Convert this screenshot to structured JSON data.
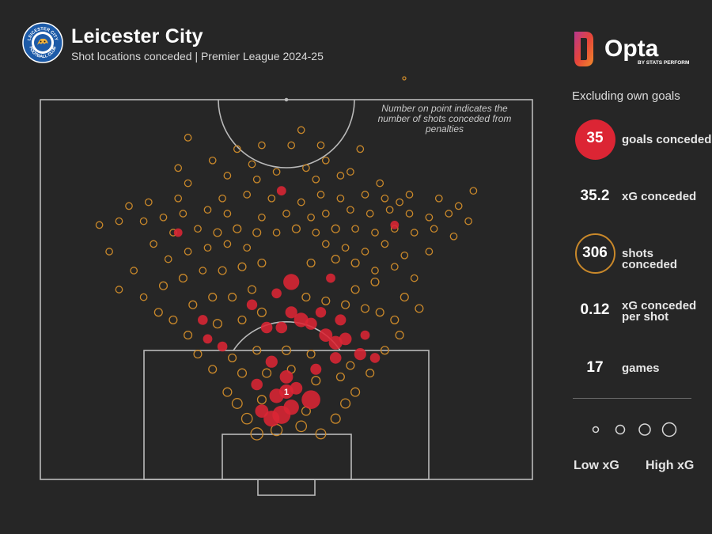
{
  "header": {
    "title": "Leicester City",
    "subtitle": "Shot locations conceded | Premier League 2024-25"
  },
  "brand": {
    "name": "Opta",
    "tagline": "BY STATS PERFORM"
  },
  "crest": {
    "top_text": "LEICESTER CITY",
    "bottom_text": "FOOTBALL CLUB"
  },
  "note": "Number on point indicates the number of shots conceded from penalties",
  "panel": {
    "note": "Excluding own goals",
    "stats": [
      {
        "value": "35",
        "label": "goals conceded"
      },
      {
        "value": "35.2",
        "label": "xG conceded"
      },
      {
        "value": "306",
        "label": "shots conceded"
      },
      {
        "value": "0.12",
        "label_line1": "xG conceded",
        "label_line2": "per shot"
      },
      {
        "value": "17",
        "label": "games"
      }
    ],
    "legend": {
      "low": "Low xG",
      "high": "High xG"
    }
  },
  "colors": {
    "background": "#262626",
    "goal": "#dc2534",
    "shot": "#c9882a",
    "pitch_lines": "#b9b9b9"
  },
  "chart_data": {
    "type": "scatter",
    "x_axis": "pitch width (0-100, left to right)",
    "y_axis": "distance from goal line (0-100)",
    "penalty_label": "1",
    "goals": [
      [
        49,
        17,
        0.28
      ],
      [
        47,
        16,
        0.2
      ],
      [
        51,
        19,
        0.18
      ],
      [
        55,
        21,
        0.3
      ],
      [
        45,
        18,
        0.12
      ],
      [
        48,
        22,
        0.15
      ],
      [
        52,
        24,
        0.1
      ],
      [
        44,
        25,
        0.08
      ],
      [
        50,
        27,
        0.12
      ],
      [
        47,
        31,
        0.09
      ],
      [
        56,
        29,
        0.07
      ],
      [
        60,
        36,
        0.13
      ],
      [
        62,
        37,
        0.1
      ],
      [
        58,
        38,
        0.12
      ],
      [
        55,
        41,
        0.09
      ],
      [
        49,
        40,
        0.08
      ],
      [
        53,
        42,
        0.15
      ],
      [
        51,
        44,
        0.09
      ],
      [
        57,
        44,
        0.06
      ],
      [
        61,
        42,
        0.07
      ],
      [
        65,
        33,
        0.09
      ],
      [
        68,
        32,
        0.05
      ],
      [
        60,
        32,
        0.08
      ],
      [
        46,
        40,
        0.08
      ],
      [
        43,
        46,
        0.06
      ],
      [
        48,
        49,
        0.05
      ],
      [
        51,
        52,
        0.2
      ],
      [
        59,
        53,
        0.04
      ],
      [
        37,
        35,
        0.05
      ],
      [
        34,
        37,
        0.04
      ],
      [
        33,
        42,
        0.05
      ],
      [
        66,
        38,
        0.04
      ],
      [
        28,
        65,
        0.03
      ],
      [
        72,
        67,
        0.03
      ],
      [
        49,
        76,
        0.04
      ]
    ],
    "shots": [
      [
        44,
        12,
        0.09
      ],
      [
        48,
        13,
        0.07
      ],
      [
        53,
        14,
        0.06
      ],
      [
        57,
        12,
        0.05
      ],
      [
        42,
        16,
        0.06
      ],
      [
        60,
        16,
        0.04
      ],
      [
        40,
        20,
        0.05
      ],
      [
        62,
        20,
        0.04
      ],
      [
        38,
        23,
        0.03
      ],
      [
        64,
        23,
        0.03
      ],
      [
        45,
        21,
        0.03
      ],
      [
        54,
        18,
        0.03
      ],
      [
        41,
        28,
        0.03
      ],
      [
        46,
        28,
        0.03
      ],
      [
        51,
        29,
        0.02
      ],
      [
        56,
        26,
        0.03
      ],
      [
        61,
        27,
        0.02
      ],
      [
        39,
        32,
        0.02
      ],
      [
        44,
        34,
        0.02
      ],
      [
        50,
        34,
        0.03
      ],
      [
        55,
        33,
        0.02
      ],
      [
        63,
        30,
        0.02
      ],
      [
        67,
        28,
        0.02
      ],
      [
        35,
        29,
        0.02
      ],
      [
        32,
        33,
        0.02
      ],
      [
        70,
        34,
        0.02
      ],
      [
        73,
        38,
        0.02
      ],
      [
        30,
        38,
        0.02
      ],
      [
        36,
        41,
        0.03
      ],
      [
        41,
        42,
        0.02
      ],
      [
        45,
        44,
        0.03
      ],
      [
        58,
        47,
        0.02
      ],
      [
        62,
        46,
        0.02
      ],
      [
        66,
        45,
        0.02
      ],
      [
        69,
        44,
        0.02
      ],
      [
        72,
        42,
        0.02
      ],
      [
        27,
        42,
        0.02
      ],
      [
        24,
        44,
        0.02
      ],
      [
        31,
        46,
        0.02
      ],
      [
        35,
        48,
        0.02
      ],
      [
        39,
        48,
        0.02
      ],
      [
        43,
        50,
        0.02
      ],
      [
        54,
        48,
        0.02
      ],
      [
        64,
        50,
        0.02
      ],
      [
        68,
        52,
        0.02
      ],
      [
        74,
        48,
        0.02
      ],
      [
        77,
        45,
        0.02
      ],
      [
        21,
        48,
        0.01
      ],
      [
        25,
        51,
        0.02
      ],
      [
        29,
        53,
        0.02
      ],
      [
        33,
        55,
        0.01
      ],
      [
        37,
        55,
        0.02
      ],
      [
        41,
        56,
        0.02
      ],
      [
        45,
        57,
        0.02
      ],
      [
        55,
        57,
        0.02
      ],
      [
        60,
        58,
        0.02
      ],
      [
        64,
        57,
        0.02
      ],
      [
        68,
        55,
        0.01
      ],
      [
        72,
        56,
        0.01
      ],
      [
        76,
        53,
        0.01
      ],
      [
        26,
        58,
        0.01
      ],
      [
        30,
        60,
        0.01
      ],
      [
        34,
        61,
        0.01
      ],
      [
        38,
        62,
        0.01
      ],
      [
        42,
        61,
        0.01
      ],
      [
        58,
        62,
        0.01
      ],
      [
        62,
        61,
        0.01
      ],
      [
        66,
        60,
        0.01
      ],
      [
        70,
        62,
        0.01
      ],
      [
        74,
        59,
        0.01
      ],
      [
        79,
        60,
        0.01
      ],
      [
        16,
        50,
        0.01
      ],
      [
        19,
        55,
        0.01
      ],
      [
        14,
        60,
        0.01
      ],
      [
        23,
        62,
        0.01
      ],
      [
        27,
        65,
        0.01
      ],
      [
        32,
        66,
        0.01
      ],
      [
        36,
        65,
        0.02
      ],
      [
        40,
        66,
        0.02
      ],
      [
        44,
        65,
        0.02
      ],
      [
        48,
        65,
        0.01
      ],
      [
        52,
        66,
        0.02
      ],
      [
        56,
        65,
        0.01
      ],
      [
        60,
        66,
        0.02
      ],
      [
        64,
        66,
        0.01
      ],
      [
        68,
        65,
        0.01
      ],
      [
        72,
        66,
        0.01
      ],
      [
        76,
        65,
        0.01
      ],
      [
        80,
        66,
        0.01
      ],
      [
        84,
        64,
        0.01
      ],
      [
        12,
        67,
        0.01
      ],
      [
        16,
        68,
        0.01
      ],
      [
        21,
        68,
        0.01
      ],
      [
        25,
        69,
        0.01
      ],
      [
        29,
        70,
        0.01
      ],
      [
        34,
        71,
        0.01
      ],
      [
        38,
        70,
        0.01
      ],
      [
        45,
        69,
        0.01
      ],
      [
        50,
        70,
        0.01
      ],
      [
        55,
        69,
        0.01
      ],
      [
        58,
        70,
        0.01
      ],
      [
        63,
        71,
        0.01
      ],
      [
        67,
        70,
        0.01
      ],
      [
        71,
        71,
        0.01
      ],
      [
        75,
        70,
        0.01
      ],
      [
        79,
        69,
        0.01
      ],
      [
        83,
        70,
        0.01
      ],
      [
        87,
        68,
        0.01
      ],
      [
        22,
        73,
        0.01
      ],
      [
        28,
        74,
        0.01
      ],
      [
        37,
        74,
        0.01
      ],
      [
        42,
        75,
        0.01
      ],
      [
        47,
        74,
        0.01
      ],
      [
        53,
        73,
        0.01
      ],
      [
        57,
        75,
        0.01
      ],
      [
        61,
        74,
        0.01
      ],
      [
        66,
        75,
        0.01
      ],
      [
        70,
        74,
        0.01
      ],
      [
        75,
        75,
        0.01
      ],
      [
        81,
        74,
        0.01
      ],
      [
        30,
        78,
        0.01
      ],
      [
        38,
        80,
        0.01
      ],
      [
        44,
        79,
        0.01
      ],
      [
        56,
        79,
        0.01
      ],
      [
        61,
        80,
        0.01
      ],
      [
        69,
        78,
        0.01
      ],
      [
        28,
        82,
        0.01
      ],
      [
        35,
        84,
        0.01
      ],
      [
        43,
        83,
        0.01
      ],
      [
        48,
        81,
        0.01
      ],
      [
        54,
        82,
        0.01
      ],
      [
        58,
        84,
        0.01
      ],
      [
        63,
        81,
        0.01
      ],
      [
        40,
        87,
        0.01
      ],
      [
        45,
        88,
        0.01
      ],
      [
        51,
        88,
        0.01
      ],
      [
        57,
        88,
        0.01
      ],
      [
        65,
        87,
        0.01
      ],
      [
        30,
        90,
        0.01
      ],
      [
        53,
        92,
        0.01
      ],
      [
        73,
        73,
        0.01
      ],
      [
        85,
        72,
        0.01
      ],
      [
        18,
        72,
        0.01
      ],
      [
        88,
        76,
        0.01
      ]
    ]
  }
}
